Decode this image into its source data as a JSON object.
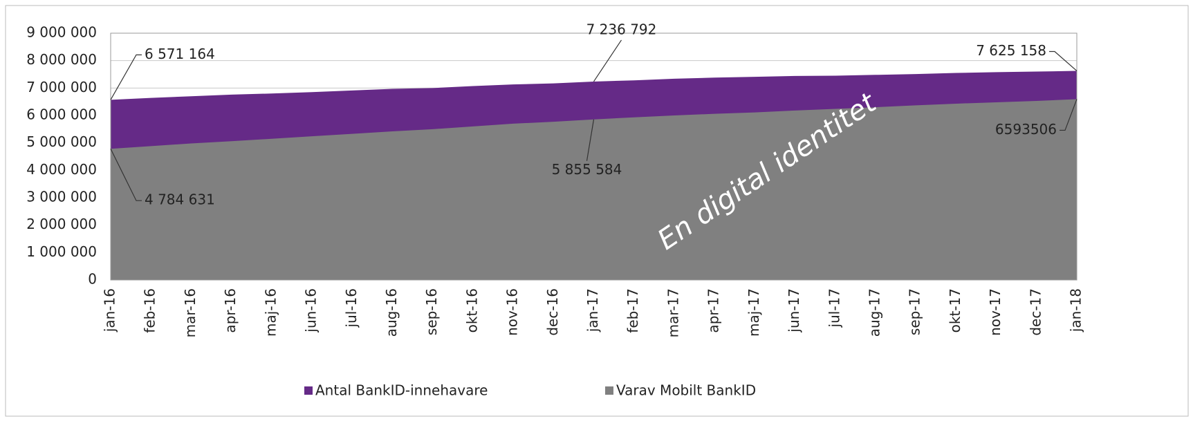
{
  "chart_data": {
    "type": "area",
    "annotation": "En digital identitet",
    "categories": [
      "jan-16",
      "feb-16",
      "mar-16",
      "apr-16",
      "maj-16",
      "jun-16",
      "jul-16",
      "aug-16",
      "sep-16",
      "okt-16",
      "nov-16",
      "dec-16",
      "jan-17",
      "feb-17",
      "mar-17",
      "apr-17",
      "maj-17",
      "jun-17",
      "jul-17",
      "aug-17",
      "sep-17",
      "okt-17",
      "nov-17",
      "dec-17",
      "jan-18"
    ],
    "series": [
      {
        "name": "Antal BankID-innehavare",
        "color": "#652a87",
        "values": [
          6571164,
          6640000,
          6700000,
          6760000,
          6800000,
          6850000,
          6910000,
          6970000,
          7000000,
          7070000,
          7130000,
          7170000,
          7236792,
          7280000,
          7340000,
          7380000,
          7410000,
          7440000,
          7450000,
          7480000,
          7510000,
          7550000,
          7580000,
          7600000,
          7625158
        ],
        "value_labels": [
          "6 571 164",
          null,
          null,
          null,
          null,
          null,
          null,
          null,
          null,
          null,
          null,
          null,
          "7 236 792",
          null,
          null,
          null,
          null,
          null,
          null,
          null,
          null,
          null,
          null,
          null,
          "7 625 158"
        ]
      },
      {
        "name": "Varav Mobilt BankID",
        "color": "#808080",
        "values": [
          4784631,
          4880000,
          4980000,
          5060000,
          5150000,
          5240000,
          5330000,
          5420000,
          5500000,
          5600000,
          5700000,
          5770000,
          5855584,
          5930000,
          6000000,
          6060000,
          6110000,
          6180000,
          6240000,
          6300000,
          6370000,
          6430000,
          6480000,
          6530000,
          6593506
        ],
        "value_labels": [
          "4 784 631",
          null,
          null,
          null,
          null,
          null,
          null,
          null,
          null,
          null,
          null,
          null,
          "5 855 584",
          null,
          null,
          null,
          null,
          null,
          null,
          null,
          null,
          null,
          null,
          null,
          "6593506"
        ]
      }
    ],
    "ylim": [
      0,
      9000000
    ],
    "yticks": [
      0,
      {
        "value": 1000000,
        "label": "1 000 000"
      },
      {
        "value": 2000000,
        "label": "2 000 000"
      },
      {
        "value": 3000000,
        "label": "3 000 000"
      },
      {
        "value": 4000000,
        "label": "4 000 000"
      },
      {
        "value": 5000000,
        "label": "5 000 000"
      },
      {
        "value": 6000000,
        "label": "6 000 000"
      },
      {
        "value": 7000000,
        "label": "7 000 000"
      },
      {
        "value": 8000000,
        "label": "8 000 000"
      },
      {
        "value": 9000000,
        "label": "9 000 000"
      }
    ],
    "grid": true,
    "legend": "bottom"
  }
}
